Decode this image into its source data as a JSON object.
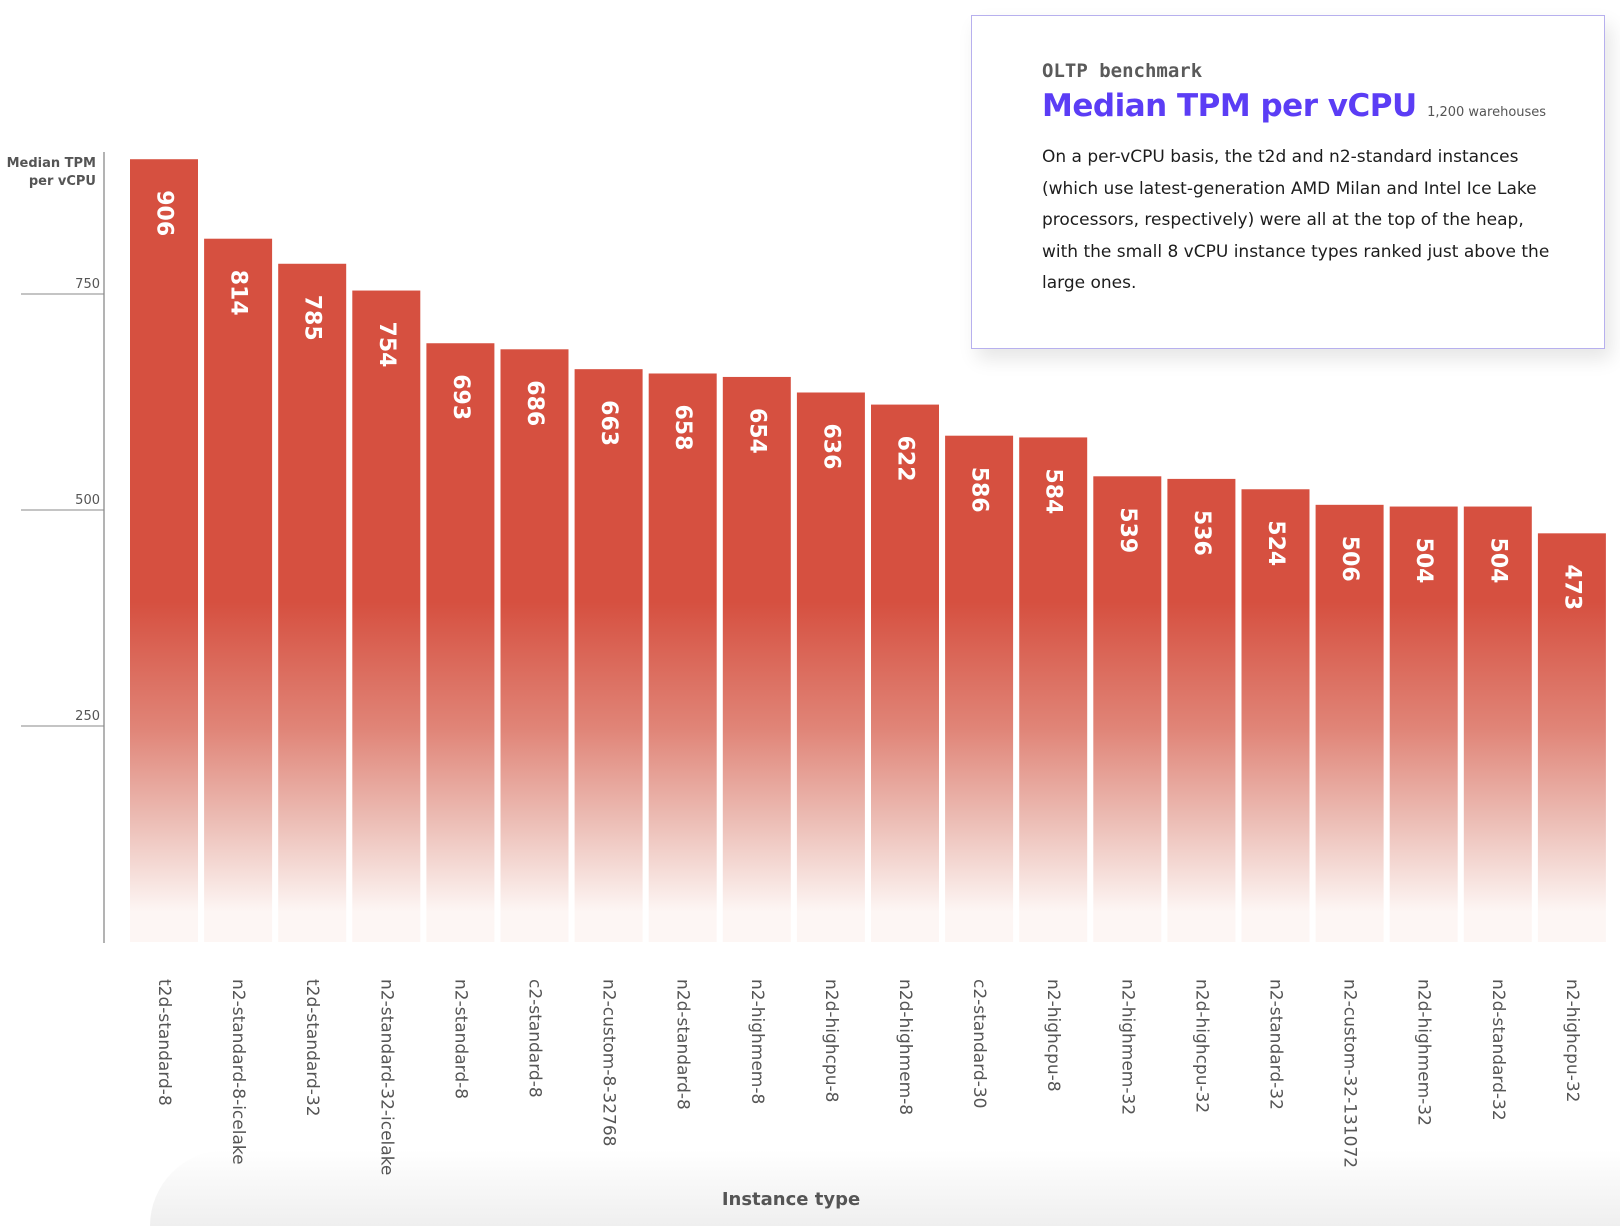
{
  "card": {
    "kicker": "OLTP benchmark",
    "title": "Median TPM per vCPU",
    "subtitle": "1,200 warehouses",
    "body": "On a per-vCPU basis, the t2d and n2-standard instances (which use latest-generation AMD Milan and Intel Ice Lake processors, respectively) were all at the top of the heap, with the small 8 vCPU instance types ranked just above the large ones.",
    "accent_color": "#5b3df5",
    "border_color": "#b7b0ee"
  },
  "chart_data": {
    "type": "bar",
    "title": "Median TPM per vCPU",
    "subtitle": "1,200 warehouses",
    "xlabel": "Instance type",
    "ylabel": "Median TPM per vCPU",
    "ylabel_lines": [
      "Median TPM",
      "per vCPU"
    ],
    "ylim": [
      0,
      950
    ],
    "yticks": [
      250,
      500,
      750
    ],
    "grid": false,
    "bar_color": "#d65040",
    "categories": [
      "t2d-standard-8",
      "n2-standard-8-icelake",
      "t2d-standard-32",
      "n2-standard-32-icelake",
      "n2-standard-8",
      "c2-standard-8",
      "n2-custom-8-32768",
      "n2d-standard-8",
      "n2-highmem-8",
      "n2d-highcpu-8",
      "n2d-highmem-8",
      "c2-standard-30",
      "n2-highcpu-8",
      "n2-highmem-32",
      "n2d-highcpu-32",
      "n2-standard-32",
      "n2-custom-32-131072",
      "n2d-highmem-32",
      "n2d-standard-32",
      "n2-highcpu-32"
    ],
    "values": [
      906,
      814,
      785,
      754,
      693,
      686,
      663,
      658,
      654,
      636,
      622,
      586,
      584,
      539,
      536,
      524,
      506,
      504,
      504,
      473
    ]
  }
}
